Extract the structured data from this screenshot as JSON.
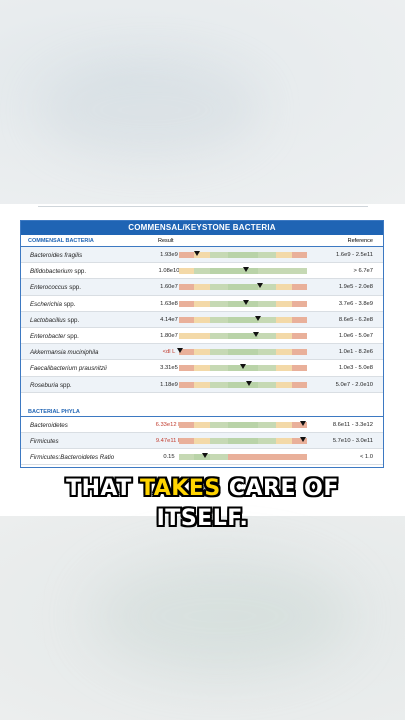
{
  "panel_title": "COMMENSAL/KEYSTONE BACTERIA",
  "columns": {
    "section": "COMMENSAL BACTERIA",
    "result": "Result",
    "reference": "Reference"
  },
  "commensal": [
    {
      "name": "Bacteroides fragilis",
      "suffix": "",
      "result": "1.93e9",
      "flag": false,
      "ref": "1.6e9 - 2.5e11",
      "level": 0.14,
      "bar": [
        "#e9b09a",
        "#f3d9a8",
        "#c6d9b4",
        "#b9d3a8",
        "#c6d9b4",
        "#f3d9a8",
        "#e9b09a"
      ]
    },
    {
      "name": "Bifidobacterium",
      "suffix": "spp.",
      "result": "1.08e10",
      "flag": false,
      "ref": "> 6.7e7",
      "level": 0.52,
      "bar": [
        "#f3d9a8",
        "#c6d9b4",
        "#b9d3a8",
        "#b9d3a8",
        "#c6d9b4",
        "#c6d9b4",
        "#c6d9b4"
      ]
    },
    {
      "name": "Enterococcus",
      "suffix": "spp.",
      "result": "1.60e7",
      "flag": false,
      "ref": "1.9e5 - 2.0e8",
      "level": 0.63,
      "bar": [
        "#e9b09a",
        "#f3d9a8",
        "#c6d9b4",
        "#b9d3a8",
        "#c6d9b4",
        "#f3d9a8",
        "#e9b09a"
      ]
    },
    {
      "name": "Escherichia",
      "suffix": "spp.",
      "result": "1.63e8",
      "flag": false,
      "ref": "3.7e6 - 3.8e9",
      "level": 0.52,
      "bar": [
        "#e9b09a",
        "#f3d9a8",
        "#c6d9b4",
        "#b9d3a8",
        "#c6d9b4",
        "#f3d9a8",
        "#e9b09a"
      ]
    },
    {
      "name": "Lactobacillus",
      "suffix": "spp.",
      "result": "4.14e7",
      "flag": false,
      "ref": "8.6e5 - 6.2e8",
      "level": 0.62,
      "bar": [
        "#e9b09a",
        "#f3d9a8",
        "#c6d9b4",
        "#b9d3a8",
        "#c6d9b4",
        "#f3d9a8",
        "#e9b09a"
      ]
    },
    {
      "name": "Enterobacter",
      "suffix": "spp.",
      "result": "1.80e7",
      "flag": false,
      "ref": "1.0e6 - 5.0e7",
      "level": 0.6,
      "bar": [
        "#f3d9a8",
        "#f3d9a8",
        "#c6d9b4",
        "#b9d3a8",
        "#c6d9b4",
        "#f3d9a8",
        "#e9b09a"
      ]
    },
    {
      "name": "Akkermansia muciniphila",
      "suffix": "",
      "result": "<dl L",
      "flag": true,
      "ref": "1.0e1 - 8.2e6",
      "level": 0.01,
      "bar": [
        "#e9b09a",
        "#f3d9a8",
        "#c6d9b4",
        "#b9d3a8",
        "#c6d9b4",
        "#f3d9a8",
        "#e9b09a"
      ]
    },
    {
      "name": "Faecalibacterium prausnitzii",
      "suffix": "",
      "result": "3.31e5",
      "flag": false,
      "ref": "1.0e3 - 5.0e8",
      "level": 0.5,
      "bar": [
        "#e9b09a",
        "#f3d9a8",
        "#c6d9b4",
        "#b9d3a8",
        "#c6d9b4",
        "#f3d9a8",
        "#e9b09a"
      ]
    },
    {
      "name": "Roseburia",
      "suffix": "spp.",
      "result": "1.18e9",
      "flag": false,
      "ref": "5.0e7 - 2.0e10",
      "level": 0.55,
      "bar": [
        "#e9b09a",
        "#f3d9a8",
        "#c6d9b4",
        "#b9d3a8",
        "#c6d9b4",
        "#f3d9a8",
        "#e9b09a"
      ]
    }
  ],
  "phyla_label": "BACTERIAL PHYLA",
  "phyla": [
    {
      "name": "Bacteroidetes",
      "result": "6.33e12 H",
      "flag": true,
      "ref": "8.6e11 - 3.3e12",
      "level": 0.97,
      "bar": [
        "#e9b09a",
        "#f3d9a8",
        "#c6d9b4",
        "#b9d3a8",
        "#c6d9b4",
        "#f3d9a8",
        "#e9b09a"
      ]
    },
    {
      "name": "Firmicutes",
      "result": "9.47e11 H",
      "flag": true,
      "ref": "5.7e10 - 3.0e11",
      "level": 0.97,
      "bar": [
        "#e9b09a",
        "#f3d9a8",
        "#c6d9b4",
        "#b9d3a8",
        "#c6d9b4",
        "#f3d9a8",
        "#e9b09a"
      ]
    },
    {
      "name": "Firmicutes:Bacteroidetes Ratio",
      "result": "0.15",
      "flag": false,
      "ref": "< 1.0",
      "level": 0.2,
      "bar": [
        "#c6d9b4",
        "#b9d3a8",
        "#c6d9b4",
        "#e9b09a",
        "#e9b09a",
        "#e9b09a",
        "#e9b09a"
      ]
    }
  ],
  "caption": {
    "line1_a": "THAT ",
    "line1_b": "TAKES",
    "line1_c": " CARE OF",
    "line2": "ITSELF."
  }
}
